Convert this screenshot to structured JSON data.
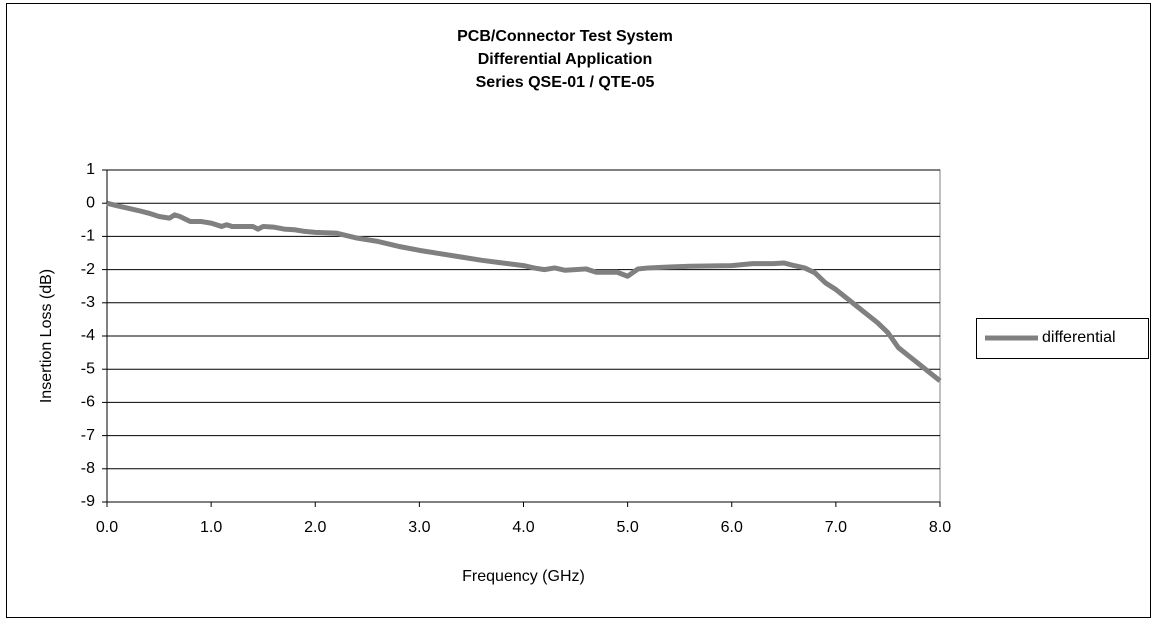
{
  "chart_data": {
    "type": "line",
    "title": [
      "PCB/Connector Test System",
      "Differential Application",
      "Series QSE-01 / QTE-05"
    ],
    "x_label": "Frequency (GHz)",
    "y_label": "Insertion Loss (dB)",
    "x": [
      0,
      0.1,
      0.2,
      0.3,
      0.4,
      0.5,
      0.6,
      0.65,
      0.7,
      0.8,
      0.9,
      1.0,
      1.1,
      1.15,
      1.2,
      1.4,
      1.45,
      1.5,
      1.6,
      1.7,
      1.8,
      1.9,
      2.0,
      2.2,
      2.4,
      2.6,
      2.8,
      3.0,
      3.2,
      3.4,
      3.6,
      3.8,
      4.0,
      4.1,
      4.2,
      4.3,
      4.4,
      4.6,
      4.7,
      4.9,
      5.0,
      5.1,
      5.2,
      5.4,
      5.6,
      6.0,
      6.2,
      6.4,
      6.5,
      6.6,
      6.7,
      6.8,
      6.9,
      7.0,
      7.1,
      7.2,
      7.3,
      7.4,
      7.5,
      7.6,
      7.7,
      7.8,
      7.9,
      8.0
    ],
    "series": [
      {
        "name": "differential",
        "color": "#808080",
        "values": [
          0,
          -0.08,
          -0.15,
          -0.22,
          -0.3,
          -0.4,
          -0.45,
          -0.35,
          -0.4,
          -0.55,
          -0.55,
          -0.6,
          -0.7,
          -0.65,
          -0.7,
          -0.7,
          -0.78,
          -0.7,
          -0.72,
          -0.78,
          -0.8,
          -0.85,
          -0.88,
          -0.9,
          -1.05,
          -1.15,
          -1.3,
          -1.42,
          -1.52,
          -1.62,
          -1.72,
          -1.8,
          -1.88,
          -1.95,
          -2.0,
          -1.95,
          -2.02,
          -1.98,
          -2.08,
          -2.08,
          -2.2,
          -1.98,
          -1.95,
          -1.92,
          -1.9,
          -1.88,
          -1.82,
          -1.82,
          -1.8,
          -1.88,
          -1.95,
          -2.1,
          -2.4,
          -2.6,
          -2.85,
          -3.1,
          -3.35,
          -3.6,
          -3.9,
          -4.35,
          -4.6,
          -4.85,
          -5.1,
          -5.35
        ]
      }
    ],
    "xlim": [
      0,
      8
    ],
    "xticks": [
      {
        "value": 0,
        "label": "0.0"
      },
      {
        "value": 1,
        "label": "1.0"
      },
      {
        "value": 2,
        "label": "2.0"
      },
      {
        "value": 3,
        "label": "3.0"
      },
      {
        "value": 4,
        "label": "4.0"
      },
      {
        "value": 5,
        "label": "5.0"
      },
      {
        "value": 6,
        "label": "6.0"
      },
      {
        "value": 7,
        "label": "7.0"
      },
      {
        "value": 8,
        "label": "8.0"
      }
    ],
    "ylim": [
      -9,
      1
    ],
    "yticks": [
      1,
      0,
      -1,
      -2,
      -3,
      -4,
      -5,
      -6,
      -7,
      -8,
      -9
    ],
    "grid": true,
    "legend": "right"
  }
}
